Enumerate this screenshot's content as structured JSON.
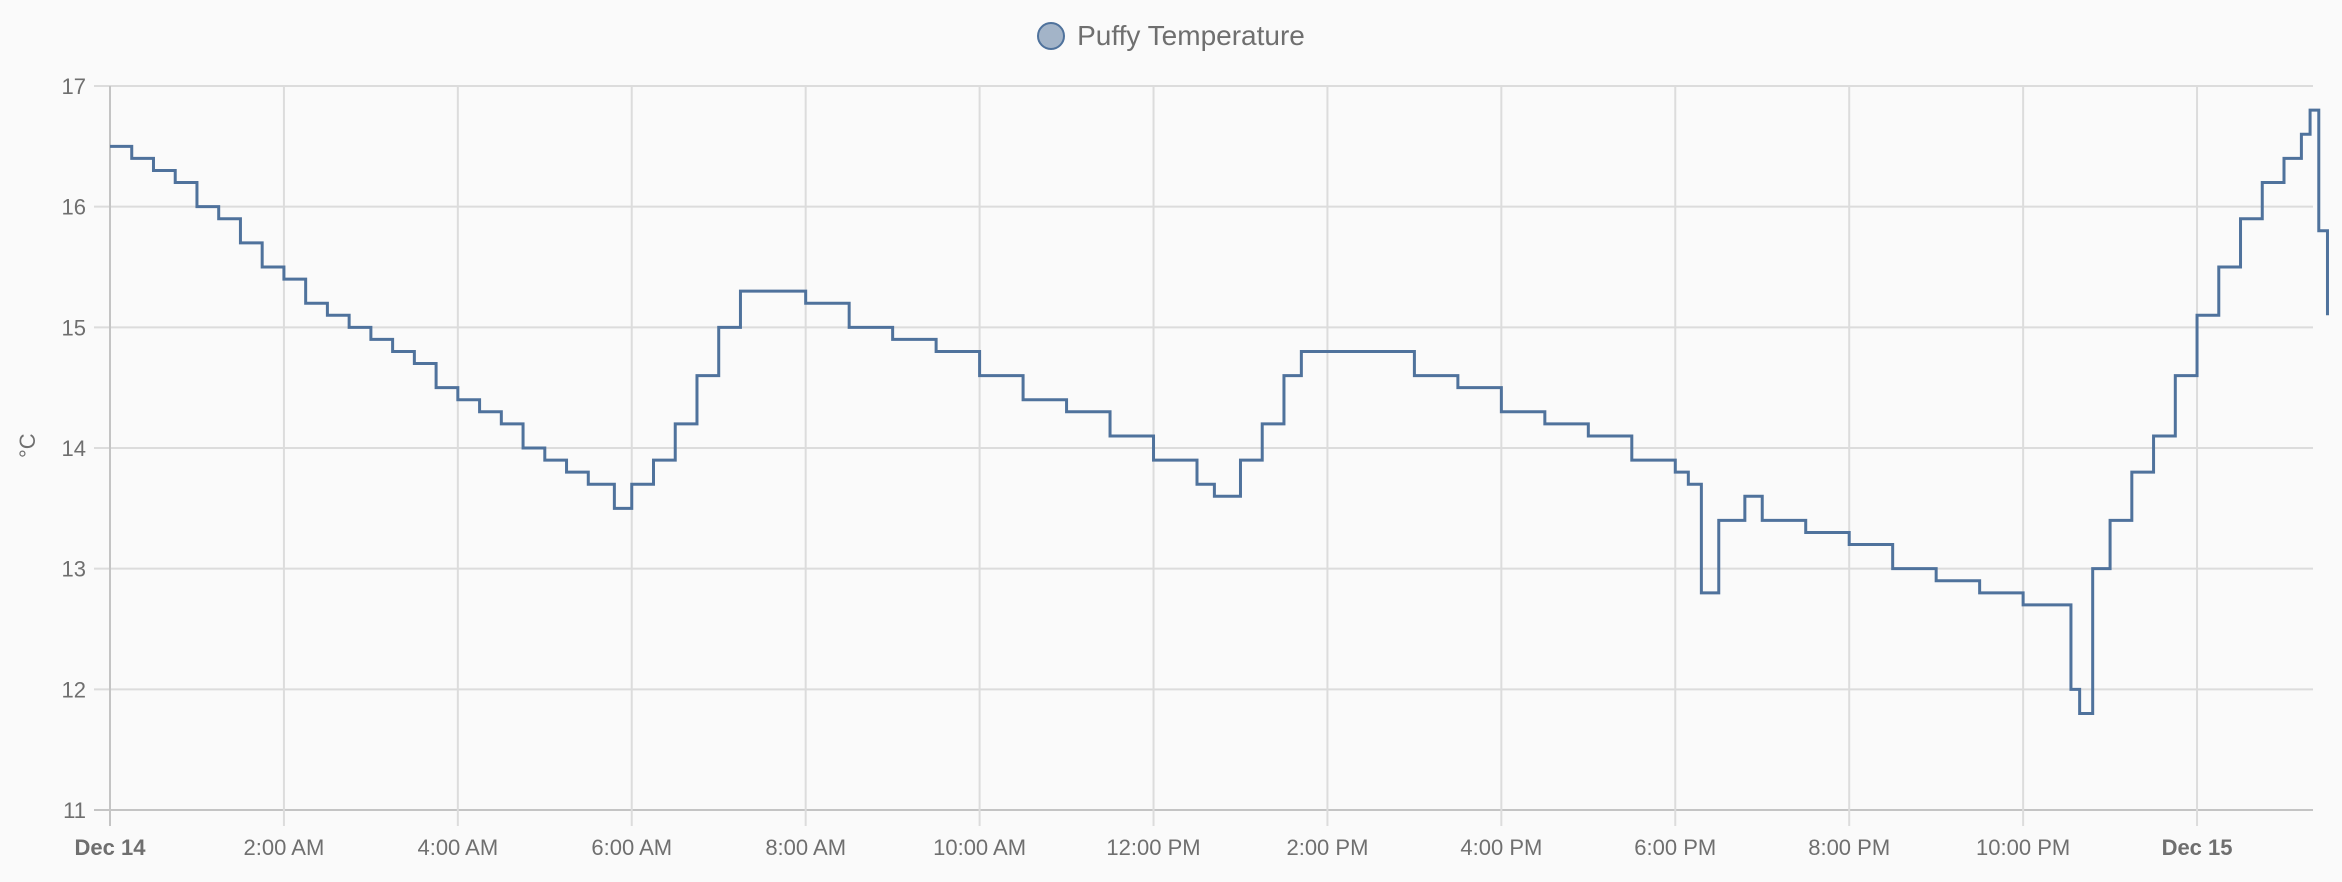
{
  "legend": {
    "label": "Puffy Temperature",
    "swatch_fill": "#a3b4c8",
    "swatch_border": "#4f729c"
  },
  "axes": {
    "ylabel": "°C",
    "yticks": [
      "17",
      "16",
      "15",
      "14",
      "13",
      "12",
      "11"
    ],
    "xticks": [
      {
        "label": "Dec 14",
        "bold": true
      },
      {
        "label": "2:00 AM",
        "bold": false
      },
      {
        "label": "4:00 AM",
        "bold": false
      },
      {
        "label": "6:00 AM",
        "bold": false
      },
      {
        "label": "8:00 AM",
        "bold": false
      },
      {
        "label": "10:00 AM",
        "bold": false
      },
      {
        "label": "12:00 PM",
        "bold": false
      },
      {
        "label": "2:00 PM",
        "bold": false
      },
      {
        "label": "4:00 PM",
        "bold": false
      },
      {
        "label": "6:00 PM",
        "bold": false
      },
      {
        "label": "8:00 PM",
        "bold": false
      },
      {
        "label": "10:00 PM",
        "bold": false
      },
      {
        "label": "Dec 15",
        "bold": true
      }
    ]
  },
  "chart_data": {
    "type": "line",
    "title": "",
    "xlabel": "",
    "ylabel": "°C",
    "ylim": [
      11,
      17
    ],
    "x_unit": "hours since Dec 14 00:00",
    "xlim": [
      0,
      25.55
    ],
    "grid": true,
    "legend_position": "top",
    "step": true,
    "series": [
      {
        "name": "Puffy Temperature",
        "color": "#4f729c",
        "x": [
          0,
          0.25,
          0.5,
          0.75,
          1,
          1.25,
          1.5,
          1.75,
          2,
          2.25,
          2.5,
          2.75,
          3,
          3.25,
          3.5,
          3.75,
          4,
          4.25,
          4.5,
          4.75,
          5,
          5.25,
          5.5,
          5.8,
          6,
          6.25,
          6.5,
          6.75,
          7,
          7.25,
          7.5,
          8,
          8.5,
          9,
          9.5,
          10,
          10.5,
          11,
          11.5,
          12,
          12.5,
          12.7,
          13,
          13.25,
          13.5,
          13.7,
          14,
          14.5,
          15,
          15.5,
          16,
          16.5,
          17,
          17.5,
          18,
          18.15,
          18.3,
          18.5,
          18.8,
          19,
          19.5,
          20,
          20.5,
          21,
          21.5,
          22,
          22.4,
          22.55,
          22.65,
          22.8,
          23,
          23.25,
          23.5,
          23.75,
          24,
          24.25,
          24.5,
          24.75,
          25,
          25.2,
          25.3,
          25.4,
          25.5
        ],
        "values": [
          16.5,
          16.4,
          16.3,
          16.2,
          16.0,
          15.9,
          15.7,
          15.5,
          15.4,
          15.2,
          15.1,
          15.0,
          14.9,
          14.8,
          14.7,
          14.5,
          14.4,
          14.3,
          14.2,
          14.0,
          13.9,
          13.8,
          13.7,
          13.5,
          13.7,
          13.9,
          14.2,
          14.6,
          15.0,
          15.3,
          15.3,
          15.2,
          15.0,
          14.9,
          14.8,
          14.6,
          14.4,
          14.3,
          14.1,
          13.9,
          13.7,
          13.6,
          13.9,
          14.2,
          14.6,
          14.8,
          14.8,
          14.8,
          14.6,
          14.5,
          14.3,
          14.2,
          14.1,
          13.9,
          13.8,
          13.7,
          12.8,
          13.4,
          13.6,
          13.4,
          13.3,
          13.2,
          13.0,
          12.9,
          12.8,
          12.7,
          12.7,
          12.0,
          11.8,
          13.0,
          13.4,
          13.8,
          14.1,
          14.6,
          15.1,
          15.5,
          15.9,
          16.2,
          16.4,
          16.6,
          16.8,
          15.8,
          15.1
        ]
      }
    ]
  }
}
